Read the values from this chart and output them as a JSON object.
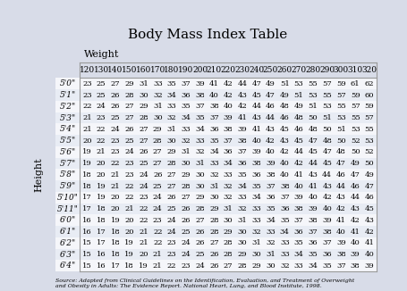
{
  "title": "Body Mass Index Table",
  "weight_label": "Weight",
  "height_label": "Height",
  "weight_cols": [
    120,
    130,
    140,
    150,
    160,
    170,
    180,
    190,
    200,
    210,
    220,
    230,
    240,
    250,
    260,
    270,
    280,
    290,
    300,
    310,
    320
  ],
  "height_rows": [
    "5'0\"",
    "5'1\"",
    "5'2\"",
    "5'3\"",
    "5'4\"",
    "5'5\"",
    "5'6\"",
    "5'7\"",
    "5'8\"",
    "5'9\"",
    "5'10\"",
    "5'11\"",
    "6'0\"",
    "6'1\"",
    "6'2\"",
    "6'3\"",
    "6'4\""
  ],
  "bmi_data": [
    [
      23,
      25,
      27,
      29,
      31,
      33,
      35,
      37,
      39,
      41,
      42,
      44,
      47,
      49,
      51,
      53,
      55,
      57,
      59,
      61,
      62
    ],
    [
      23,
      25,
      26,
      28,
      30,
      32,
      34,
      36,
      38,
      40,
      42,
      43,
      45,
      47,
      49,
      51,
      53,
      55,
      57,
      59,
      60
    ],
    [
      22,
      24,
      26,
      27,
      29,
      31,
      33,
      35,
      37,
      38,
      40,
      42,
      44,
      46,
      48,
      49,
      51,
      53,
      55,
      57,
      59
    ],
    [
      21,
      23,
      25,
      27,
      28,
      30,
      32,
      34,
      35,
      37,
      39,
      41,
      43,
      44,
      46,
      48,
      50,
      51,
      53,
      55,
      57
    ],
    [
      21,
      22,
      24,
      26,
      27,
      29,
      31,
      33,
      34,
      36,
      38,
      39,
      41,
      43,
      45,
      46,
      48,
      50,
      51,
      53,
      55
    ],
    [
      20,
      22,
      23,
      25,
      27,
      28,
      30,
      32,
      33,
      35,
      37,
      38,
      40,
      42,
      43,
      45,
      47,
      48,
      50,
      52,
      53
    ],
    [
      19,
      21,
      23,
      24,
      26,
      27,
      29,
      31,
      32,
      34,
      36,
      37,
      39,
      40,
      42,
      44,
      45,
      47,
      48,
      50,
      52
    ],
    [
      19,
      20,
      22,
      23,
      25,
      27,
      28,
      30,
      31,
      33,
      34,
      36,
      38,
      39,
      40,
      42,
      44,
      45,
      47,
      49,
      50
    ],
    [
      18,
      20,
      21,
      23,
      24,
      26,
      27,
      29,
      30,
      32,
      33,
      35,
      36,
      38,
      40,
      41,
      43,
      44,
      46,
      47,
      49
    ],
    [
      18,
      19,
      21,
      22,
      24,
      25,
      27,
      28,
      30,
      31,
      32,
      34,
      35,
      37,
      38,
      40,
      41,
      43,
      44,
      46,
      47
    ],
    [
      17,
      19,
      20,
      22,
      23,
      24,
      26,
      27,
      29,
      30,
      32,
      33,
      34,
      36,
      37,
      39,
      40,
      42,
      43,
      44,
      46
    ],
    [
      17,
      18,
      20,
      21,
      22,
      24,
      25,
      26,
      28,
      29,
      31,
      32,
      33,
      35,
      36,
      38,
      39,
      40,
      42,
      43,
      45
    ],
    [
      16,
      18,
      19,
      20,
      22,
      23,
      24,
      26,
      27,
      28,
      30,
      31,
      33,
      34,
      35,
      37,
      38,
      39,
      41,
      42,
      43
    ],
    [
      16,
      17,
      18,
      20,
      21,
      22,
      24,
      25,
      26,
      28,
      29,
      30,
      32,
      33,
      34,
      36,
      37,
      38,
      40,
      41,
      42
    ],
    [
      15,
      17,
      18,
      19,
      21,
      22,
      23,
      24,
      26,
      27,
      28,
      30,
      31,
      32,
      33,
      35,
      36,
      37,
      39,
      40,
      41
    ],
    [
      15,
      16,
      18,
      19,
      20,
      21,
      23,
      24,
      25,
      26,
      28,
      29,
      30,
      31,
      33,
      34,
      35,
      36,
      38,
      39,
      40
    ],
    [
      15,
      16,
      17,
      18,
      19,
      21,
      22,
      23,
      24,
      26,
      27,
      28,
      29,
      30,
      32,
      33,
      34,
      35,
      37,
      38,
      39
    ]
  ],
  "source_text": "Source: Adapted from Clinical Guidelines on the Identification, Evaluation, and Treatment of Overweight\nand Obesity in Adults: The Evidence Report. National Heart, Lung, and Blood Institute, 1998.",
  "bg_color": "#d8dce8",
  "row_color_even": "#e8ecf4",
  "row_color_odd": "#f5f6fa",
  "header_bg": "#d8dce8",
  "border_color": "#999999",
  "title_fontsize": 11,
  "cell_fontsize": 6.0,
  "header_fontsize": 6.5
}
